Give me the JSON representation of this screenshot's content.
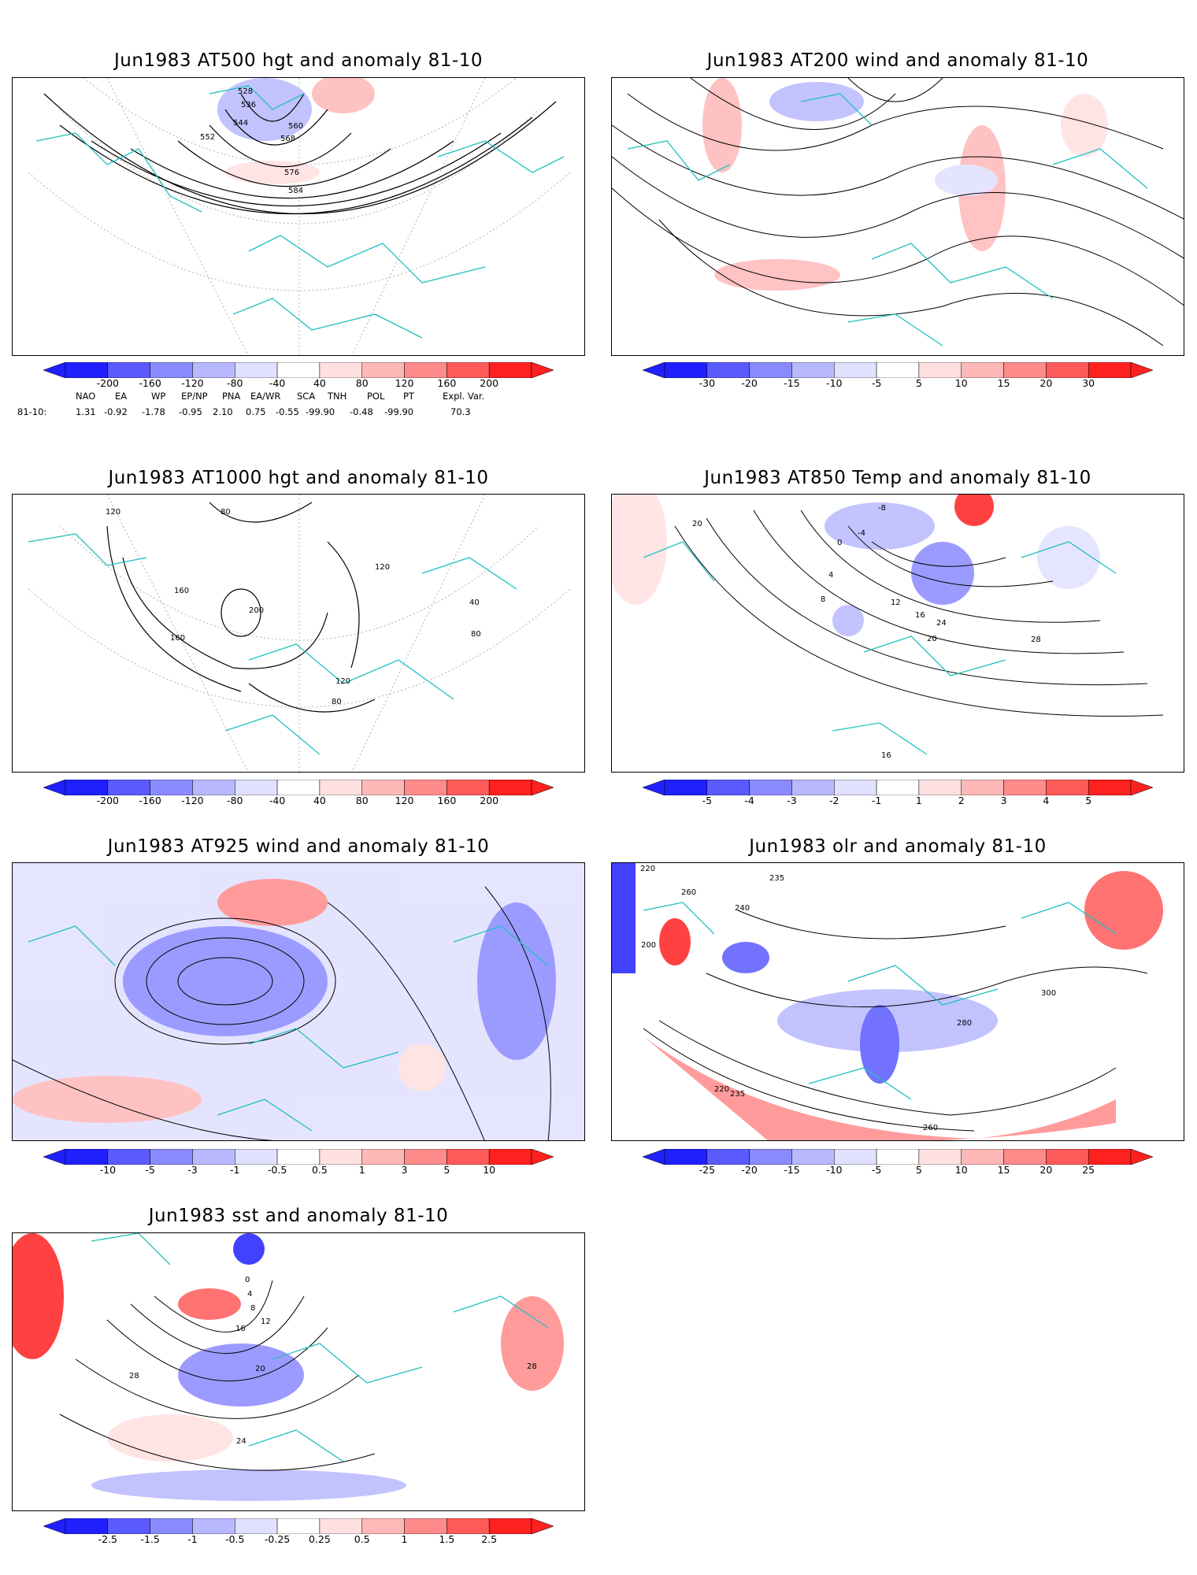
{
  "colors": {
    "blues": [
      "#2020ff",
      "#5a5aff",
      "#8a8aff",
      "#b8b8ff",
      "#e0e0ff"
    ],
    "reds": [
      "#ffe0e0",
      "#ffb8b8",
      "#ff8a8a",
      "#ff5a5a",
      "#ff2020"
    ],
    "coast": "#20c0c0",
    "contour": "#000000",
    "grid": "#b0b0b0"
  },
  "panels": [
    {
      "title": "Jun1983 AT500 hgt and anomaly 81-10",
      "colorbar": [
        "-200",
        "-160",
        "-120",
        "-80",
        "-40",
        "40",
        "80",
        "120",
        "160",
        "200"
      ],
      "contour_labels": [
        "528",
        "536",
        "544",
        "552",
        "560",
        "568",
        "576",
        "584"
      ]
    },
    {
      "title": "Jun1983 AT200 wind and anomaly 81-10",
      "colorbar": [
        "-30",
        "-20",
        "-15",
        "-10",
        "-5",
        "5",
        "10",
        "15",
        "20",
        "30"
      ],
      "contour_labels": []
    },
    {
      "title": "Jun1983 AT1000 hgt and anomaly 81-10",
      "colorbar": [
        "-200",
        "-160",
        "-120",
        "-80",
        "-40",
        "40",
        "80",
        "120",
        "160",
        "200"
      ],
      "contour_labels": [
        "120",
        "80",
        "160",
        "200",
        "40",
        "120",
        "80",
        "160",
        "120",
        "80"
      ]
    },
    {
      "title": "Jun1983 AT850 Temp and anomaly 81-10",
      "colorbar": [
        "-5",
        "-4",
        "-3",
        "-2",
        "-1",
        "1",
        "2",
        "3",
        "4",
        "5"
      ],
      "contour_labels": [
        "20",
        "-8",
        "-4",
        "0",
        "4",
        "8",
        "12",
        "16",
        "20",
        "24",
        "28",
        "16"
      ]
    },
    {
      "title": "Jun1983 AT925 wind and anomaly 81-10",
      "colorbar": [
        "-10",
        "-5",
        "-3",
        "-1",
        "-0.5",
        "0.5",
        "1",
        "3",
        "5",
        "10"
      ],
      "contour_labels": []
    },
    {
      "title": "Jun1983 olr and anomaly 81-10",
      "colorbar": [
        "-25",
        "-20",
        "-15",
        "-10",
        "-5",
        "5",
        "10",
        "15",
        "20",
        "25"
      ],
      "contour_labels": [
        "220",
        "235",
        "260",
        "240",
        "200",
        "280",
        "300",
        "235",
        "220",
        "260"
      ]
    },
    {
      "title": "Jun1983 sst and anomaly 81-10",
      "colorbar": [
        "-2.5",
        "-1.5",
        "-1",
        "-0.5",
        "-0.25",
        "0.25",
        "0.5",
        "1",
        "1.5",
        "2.5"
      ],
      "contour_labels": [
        "0",
        "4",
        "8",
        "12",
        "16",
        "20",
        "24",
        "28",
        "28"
      ]
    }
  ],
  "teleconnections": {
    "headers": [
      "NAO",
      "EA",
      "WP",
      "EP/NP",
      "PNA",
      "EA/WR",
      "SCA",
      "TNH",
      "POL",
      "PT",
      "Expl. Var."
    ],
    "row_label": "81-10:",
    "values": [
      "1.31",
      "-0.92",
      "-1.78",
      "-0.95",
      "2.10",
      "0.75",
      "-0.55",
      "-99.90",
      "-0.48",
      "-99.90",
      "70.3"
    ]
  }
}
